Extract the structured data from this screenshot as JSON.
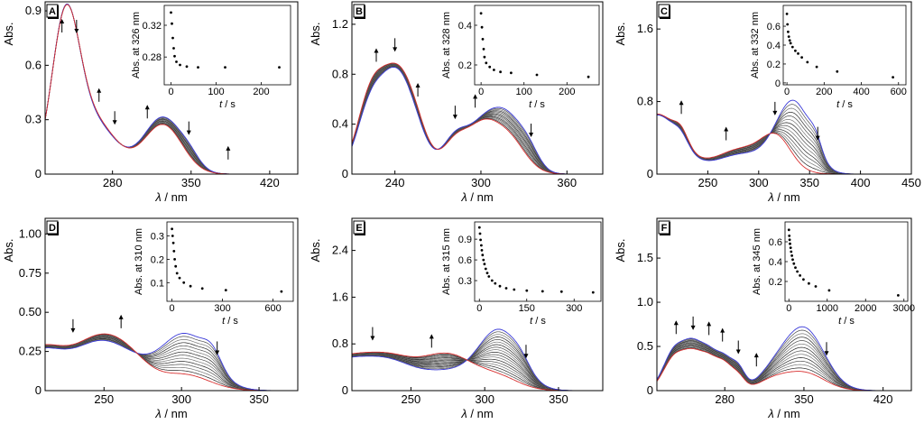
{
  "chart_data": [
    {
      "type": "line",
      "panel_label": "A",
      "xlabel_var": "λ",
      "xlabel_unit": " / nm",
      "ylabel": "Abs.",
      "xlim": [
        220,
        445
      ],
      "ylim": [
        0,
        0.95
      ],
      "xticks": [
        280,
        350,
        420
      ],
      "xtick_labels": [
        "280",
        "350",
        "420"
      ],
      "yticks": [
        0,
        0.3,
        0.6,
        0.9
      ],
      "ytick_labels": [
        "0",
        "0.3",
        "0.6",
        "0.9"
      ],
      "series_count": 12,
      "spectra": {
        "first": {
          "name": "blue (t = 0)",
          "color": "#3b3bd8"
        },
        "last": {
          "name": "red (final)",
          "color": "#d83030"
        }
      },
      "bands": [
        {
          "center": 238,
          "width": 12,
          "amp_start": 0.75,
          "amp_end": 0.74
        },
        {
          "center": 260,
          "width": 22,
          "amp_start": 0.3,
          "amp_end": 0.31
        },
        {
          "center": 325,
          "width": 17,
          "amp_start": 0.31,
          "amp_end": 0.27
        },
        {
          "center": 349,
          "width": 9,
          "amp_start": 0.05,
          "amp_end": 0.0
        }
      ],
      "arrows": [
        {
          "x": 235,
          "dir": "up"
        },
        {
          "x": 248,
          "dir": "down"
        },
        {
          "x": 268,
          "dir": "up"
        },
        {
          "x": 282,
          "dir": "down"
        },
        {
          "x": 311,
          "dir": "up"
        },
        {
          "x": 348,
          "dir": "down"
        },
        {
          "x": 383,
          "dir": "up"
        }
      ],
      "inset": {
        "type": "scatter",
        "ylabel": "Abs. at 326 nm",
        "xlabel_var": "t",
        "xlabel_unit": " / s",
        "xlim": [
          -15,
          265
        ],
        "ylim": [
          0.245,
          0.345
        ],
        "xticks": [
          0,
          100,
          200
        ],
        "xtick_labels": [
          "0",
          "100",
          "200"
        ],
        "yticks": [
          0.28,
          0.32
        ],
        "ytick_labels": [
          "0.28",
          "0.32"
        ],
        "x": [
          0,
          2,
          4,
          6,
          8,
          12,
          20,
          35,
          60,
          120,
          240
        ],
        "y": [
          0.336,
          0.322,
          0.304,
          0.291,
          0.281,
          0.274,
          0.27,
          0.268,
          0.267,
          0.267,
          0.267
        ]
      }
    },
    {
      "type": "line",
      "panel_label": "B",
      "xlabel_var": "λ",
      "xlabel_unit": " / nm",
      "ylabel": "Abs.",
      "xlim": [
        210,
        385
      ],
      "ylim": [
        0,
        1.38
      ],
      "xticks": [
        240,
        300,
        360
      ],
      "xtick_labels": [
        "240",
        "300",
        "360"
      ],
      "yticks": [
        0,
        0.4,
        0.8,
        1.2
      ],
      "ytick_labels": [
        "0",
        "0.4",
        "0.8",
        "1.2"
      ],
      "series_count": 14,
      "spectra": {
        "first": {
          "name": "blue (t = 0)",
          "color": "#3b3bd8"
        },
        "last": {
          "name": "red (final)",
          "color": "#d83030"
        }
      },
      "bands": [
        {
          "center": 224,
          "width": 10,
          "amp_start": 0.58,
          "amp_end": 0.66
        },
        {
          "center": 240,
          "width": 9,
          "amp_start": 0.5,
          "amp_end": 0.48
        },
        {
          "center": 252,
          "width": 10,
          "amp_start": 0.4,
          "amp_end": 0.46
        },
        {
          "center": 282,
          "width": 9,
          "amp_start": 0.28,
          "amp_end": 0.25
        },
        {
          "center": 300,
          "width": 10,
          "amp_start": 0.28,
          "amp_end": 0.3
        },
        {
          "center": 318,
          "width": 12,
          "amp_start": 0.45,
          "amp_end": 0.3
        },
        {
          "center": 334,
          "width": 7,
          "amp_start": 0.1,
          "amp_end": 0.0
        }
      ],
      "arrows": [
        {
          "x": 227,
          "dir": "up"
        },
        {
          "x": 240,
          "dir": "down"
        },
        {
          "x": 256,
          "dir": "up"
        },
        {
          "x": 282,
          "dir": "down"
        },
        {
          "x": 296,
          "dir": "up"
        },
        {
          "x": 335,
          "dir": "down"
        }
      ],
      "inset": {
        "type": "scatter",
        "ylabel": "Abs. at 328 nm",
        "xlabel_var": "t",
        "xlabel_unit": " / s",
        "xlim": [
          -15,
          275
        ],
        "ylim": [
          0.1,
          0.5
        ],
        "xticks": [
          0,
          100,
          200
        ],
        "xtick_labels": [
          "0",
          "100",
          "200"
        ],
        "yticks": [
          0.2,
          0.4
        ],
        "ytick_labels": [
          "0.2",
          "0.4"
        ],
        "x": [
          0,
          2,
          4,
          6,
          8,
          12,
          20,
          30,
          45,
          70,
          130,
          250
        ],
        "y": [
          0.46,
          0.39,
          0.33,
          0.28,
          0.24,
          0.21,
          0.19,
          0.175,
          0.165,
          0.16,
          0.15,
          0.14
        ]
      }
    },
    {
      "type": "line",
      "panel_label": "C",
      "xlabel_var": "λ",
      "xlabel_unit": " / nm",
      "ylabel": "Abs.",
      "xlim": [
        200,
        450
      ],
      "ylim": [
        0,
        1.9
      ],
      "xticks": [
        250,
        300,
        350,
        400,
        450
      ],
      "xtick_labels": [
        "250",
        "300",
        "350",
        "400",
        "450"
      ],
      "yticks": [
        0,
        0.8,
        1.6
      ],
      "ytick_labels": [
        "0",
        "0.8",
        "1.6"
      ],
      "series_count": 14,
      "spectra": {
        "first": {
          "name": "blue (t = 0)",
          "color": "#3b3bd8"
        },
        "last": {
          "name": "red (final)",
          "color": "#d83030"
        }
      },
      "bands": [
        {
          "center": 200,
          "width": 22,
          "amp_start": 0.65,
          "amp_end": 0.66
        },
        {
          "center": 224,
          "width": 7,
          "amp_start": 0.1,
          "amp_end": 0.14
        },
        {
          "center": 285,
          "width": 28,
          "amp_start": 0.22,
          "amp_end": 0.28
        },
        {
          "center": 318,
          "width": 14,
          "amp_start": 0.1,
          "amp_end": 0.3
        },
        {
          "center": 336,
          "width": 16,
          "amp_start": 0.72,
          "amp_end": 0.0
        },
        {
          "center": 356,
          "width": 6,
          "amp_start": 0.15,
          "amp_end": 0.0
        }
      ],
      "arrows": [
        {
          "x": 224,
          "dir": "up"
        },
        {
          "x": 268,
          "dir": "up"
        },
        {
          "x": 316,
          "dir": "down"
        },
        {
          "x": 358,
          "dir": "down"
        }
      ],
      "inset": {
        "type": "scatter",
        "ylabel": "Abs. at 332 nm",
        "xlabel_var": "t",
        "xlabel_unit": " / s",
        "xlim": [
          -20,
          640
        ],
        "ylim": [
          -0.02,
          0.82
        ],
        "xticks": [
          0,
          200,
          400,
          600
        ],
        "xtick_labels": [
          "0",
          "200",
          "400",
          "600"
        ],
        "yticks": [
          0,
          0.2,
          0.4,
          0.6
        ],
        "ytick_labels": [
          "0",
          "0.2",
          "0.4",
          "0.6"
        ],
        "x": [
          0,
          3,
          6,
          10,
          15,
          20,
          30,
          45,
          60,
          80,
          110,
          160,
          270,
          570
        ],
        "y": [
          0.73,
          0.62,
          0.54,
          0.49,
          0.45,
          0.42,
          0.38,
          0.34,
          0.31,
          0.27,
          0.22,
          0.17,
          0.12,
          0.06
        ]
      }
    },
    {
      "type": "line",
      "panel_label": "D",
      "xlabel_var": "λ",
      "xlabel_unit": " / nm",
      "ylabel": "Abs.",
      "xlim": [
        212,
        375
      ],
      "ylim": [
        0,
        1.1
      ],
      "xticks": [
        250,
        300,
        350
      ],
      "xtick_labels": [
        "250",
        "300",
        "350"
      ],
      "yticks": [
        0,
        0.25,
        0.5,
        0.75,
        1.0
      ],
      "ytick_labels": [
        "0",
        "0.25",
        "0.50",
        "0.75",
        "1.00"
      ],
      "series_count": 14,
      "spectra": {
        "first": {
          "name": "blue (t = 0)",
          "color": "#3b3bd8"
        },
        "last": {
          "name": "red (final)",
          "color": "#d83030"
        }
      },
      "bands": [
        {
          "center": 210,
          "width": 18,
          "amp_start": 0.26,
          "amp_end": 0.28
        },
        {
          "center": 245,
          "width": 14,
          "amp_start": 0.22,
          "amp_end": 0.24
        },
        {
          "center": 265,
          "width": 14,
          "amp_start": 0.16,
          "amp_end": 0.2
        },
        {
          "center": 302,
          "width": 16,
          "amp_start": 0.36,
          "amp_end": 0.1
        },
        {
          "center": 320,
          "width": 6,
          "amp_start": 0.1,
          "amp_end": 0.0
        }
      ],
      "arrows": [
        {
          "x": 230,
          "dir": "down"
        },
        {
          "x": 261,
          "dir": "up"
        },
        {
          "x": 323,
          "dir": "down"
        }
      ],
      "inset": {
        "type": "scatter",
        "ylabel": "Abs. at 310 nm",
        "xlabel_var": "t",
        "xlabel_unit": " / s",
        "xlim": [
          -30,
          720
        ],
        "ylim": [
          0.02,
          0.36
        ],
        "xticks": [
          0,
          300,
          600
        ],
        "xtick_labels": [
          "0",
          "300",
          "600"
        ],
        "yticks": [
          0.1,
          0.2,
          0.3
        ],
        "ytick_labels": [
          "0.1",
          "0.2",
          "0.3"
        ],
        "x": [
          0,
          4,
          8,
          12,
          16,
          22,
          30,
          45,
          70,
          110,
          180,
          320,
          650
        ],
        "y": [
          0.33,
          0.3,
          0.27,
          0.235,
          0.2,
          0.17,
          0.14,
          0.12,
          0.1,
          0.085,
          0.075,
          0.068,
          0.062
        ]
      }
    },
    {
      "type": "line",
      "panel_label": "E",
      "xlabel_var": "λ",
      "xlabel_unit": " / nm",
      "ylabel": "Abs.",
      "xlim": [
        210,
        380
      ],
      "ylim": [
        0,
        2.95
      ],
      "xticks": [
        250,
        300,
        350
      ],
      "xtick_labels": [
        "250",
        "300",
        "350"
      ],
      "yticks": [
        0,
        0.8,
        1.6,
        2.4
      ],
      "ytick_labels": [
        "0",
        "0.8",
        "1.6",
        "2.4"
      ],
      "series_count": 18,
      "spectra": {
        "first": {
          "name": "blue (t = 0)",
          "color": "#3b3bd8"
        },
        "last": {
          "name": "red (final)",
          "color": "#d83030"
        }
      },
      "bands": [
        {
          "center": 205,
          "width": 24,
          "amp_start": 0.52,
          "amp_end": 0.57
        },
        {
          "center": 238,
          "width": 16,
          "amp_start": 0.3,
          "amp_end": 0.34
        },
        {
          "center": 275,
          "width": 18,
          "amp_start": 0.3,
          "amp_end": 0.6
        },
        {
          "center": 310,
          "width": 14,
          "amp_start": 1.0,
          "amp_end": 0.2
        },
        {
          "center": 325,
          "width": 6,
          "amp_start": 0.12,
          "amp_end": 0.0
        }
      ],
      "arrows": [
        {
          "x": 224,
          "dir": "down"
        },
        {
          "x": 264,
          "dir": "up"
        },
        {
          "x": 328,
          "dir": "down"
        }
      ],
      "inset": {
        "type": "scatter",
        "ylabel": "Abs. at 315 nm",
        "xlabel_var": "t",
        "xlabel_unit": " / s",
        "xlim": [
          -15,
          385
        ],
        "ylim": [
          0.0,
          1.15
        ],
        "xticks": [
          0,
          150,
          300
        ],
        "xtick_labels": [
          "0",
          "150",
          "300"
        ],
        "yticks": [
          0.3,
          0.6,
          0.9
        ],
        "ytick_labels": [
          "0.3",
          "0.6",
          "0.9"
        ],
        "x": [
          0,
          2,
          4,
          6,
          8,
          10,
          13,
          16,
          20,
          25,
          30,
          40,
          50,
          65,
          85,
          110,
          150,
          200,
          260,
          360
        ],
        "y": [
          1.07,
          0.98,
          0.89,
          0.81,
          0.74,
          0.67,
          0.6,
          0.54,
          0.47,
          0.41,
          0.36,
          0.3,
          0.26,
          0.22,
          0.19,
          0.17,
          0.155,
          0.145,
          0.14,
          0.13
        ]
      }
    },
    {
      "type": "line",
      "panel_label": "F",
      "xlabel_var": "λ",
      "xlabel_unit": " / nm",
      "ylabel": "Abs.",
      "xlim": [
        220,
        445
      ],
      "ylim": [
        0,
        1.95
      ],
      "xticks": [
        280,
        350,
        420
      ],
      "xtick_labels": [
        "280",
        "350",
        "420"
      ],
      "yticks": [
        0,
        0.5,
        1.0,
        1.5
      ],
      "ytick_labels": [
        "0",
        "0.5",
        "1.0",
        "1.5"
      ],
      "series_count": 14,
      "spectra": {
        "first": {
          "name": "blue (t = 0)",
          "color": "#3b3bd8"
        },
        "last": {
          "name": "red (final)",
          "color": "#d83030"
        }
      },
      "bands": [
        {
          "center": 236,
          "width": 10,
          "amp_start": 0.46,
          "amp_end": 0.38
        },
        {
          "center": 252,
          "width": 8,
          "amp_start": 0.38,
          "amp_end": 0.3
        },
        {
          "center": 266,
          "width": 8,
          "amp_start": 0.38,
          "amp_end": 0.32
        },
        {
          "center": 280,
          "width": 7,
          "amp_start": 0.3,
          "amp_end": 0.25
        },
        {
          "center": 292,
          "width": 6,
          "amp_start": 0.22,
          "amp_end": 0.14
        },
        {
          "center": 350,
          "width": 18,
          "amp_start": 0.7,
          "amp_end": 0.2
        },
        {
          "center": 322,
          "width": 14,
          "amp_start": 0.15,
          "amp_end": 0.1
        }
      ],
      "arrows": [
        {
          "x": 237,
          "dir": "up"
        },
        {
          "x": 252,
          "dir": "down"
        },
        {
          "x": 266,
          "dir": "up"
        },
        {
          "x": 278,
          "dir": "up"
        },
        {
          "x": 292,
          "dir": "down"
        },
        {
          "x": 308,
          "dir": "up"
        },
        {
          "x": 370,
          "dir": "down"
        }
      ],
      "inset": {
        "type": "scatter",
        "ylabel": "Abs. at 345 nm",
        "xlabel_var": "t",
        "xlabel_unit": " / s",
        "xlim": [
          -100,
          3100
        ],
        "ylim": [
          0.0,
          0.8
        ],
        "xticks": [
          0,
          1000,
          2000,
          3000
        ],
        "xtick_labels": [
          "0",
          "1000",
          "2000",
          "3000"
        ],
        "yticks": [
          0.2,
          0.4,
          0.6
        ],
        "ytick_labels": [
          "0.2",
          "0.4",
          "0.6"
        ],
        "x": [
          0,
          10,
          20,
          30,
          45,
          60,
          80,
          100,
          130,
          170,
          220,
          290,
          380,
          520,
          700,
          1050,
          2850
        ],
        "y": [
          0.72,
          0.66,
          0.62,
          0.58,
          0.54,
          0.5,
          0.46,
          0.42,
          0.38,
          0.34,
          0.3,
          0.26,
          0.22,
          0.18,
          0.15,
          0.11,
          0.06
        ]
      }
    }
  ]
}
